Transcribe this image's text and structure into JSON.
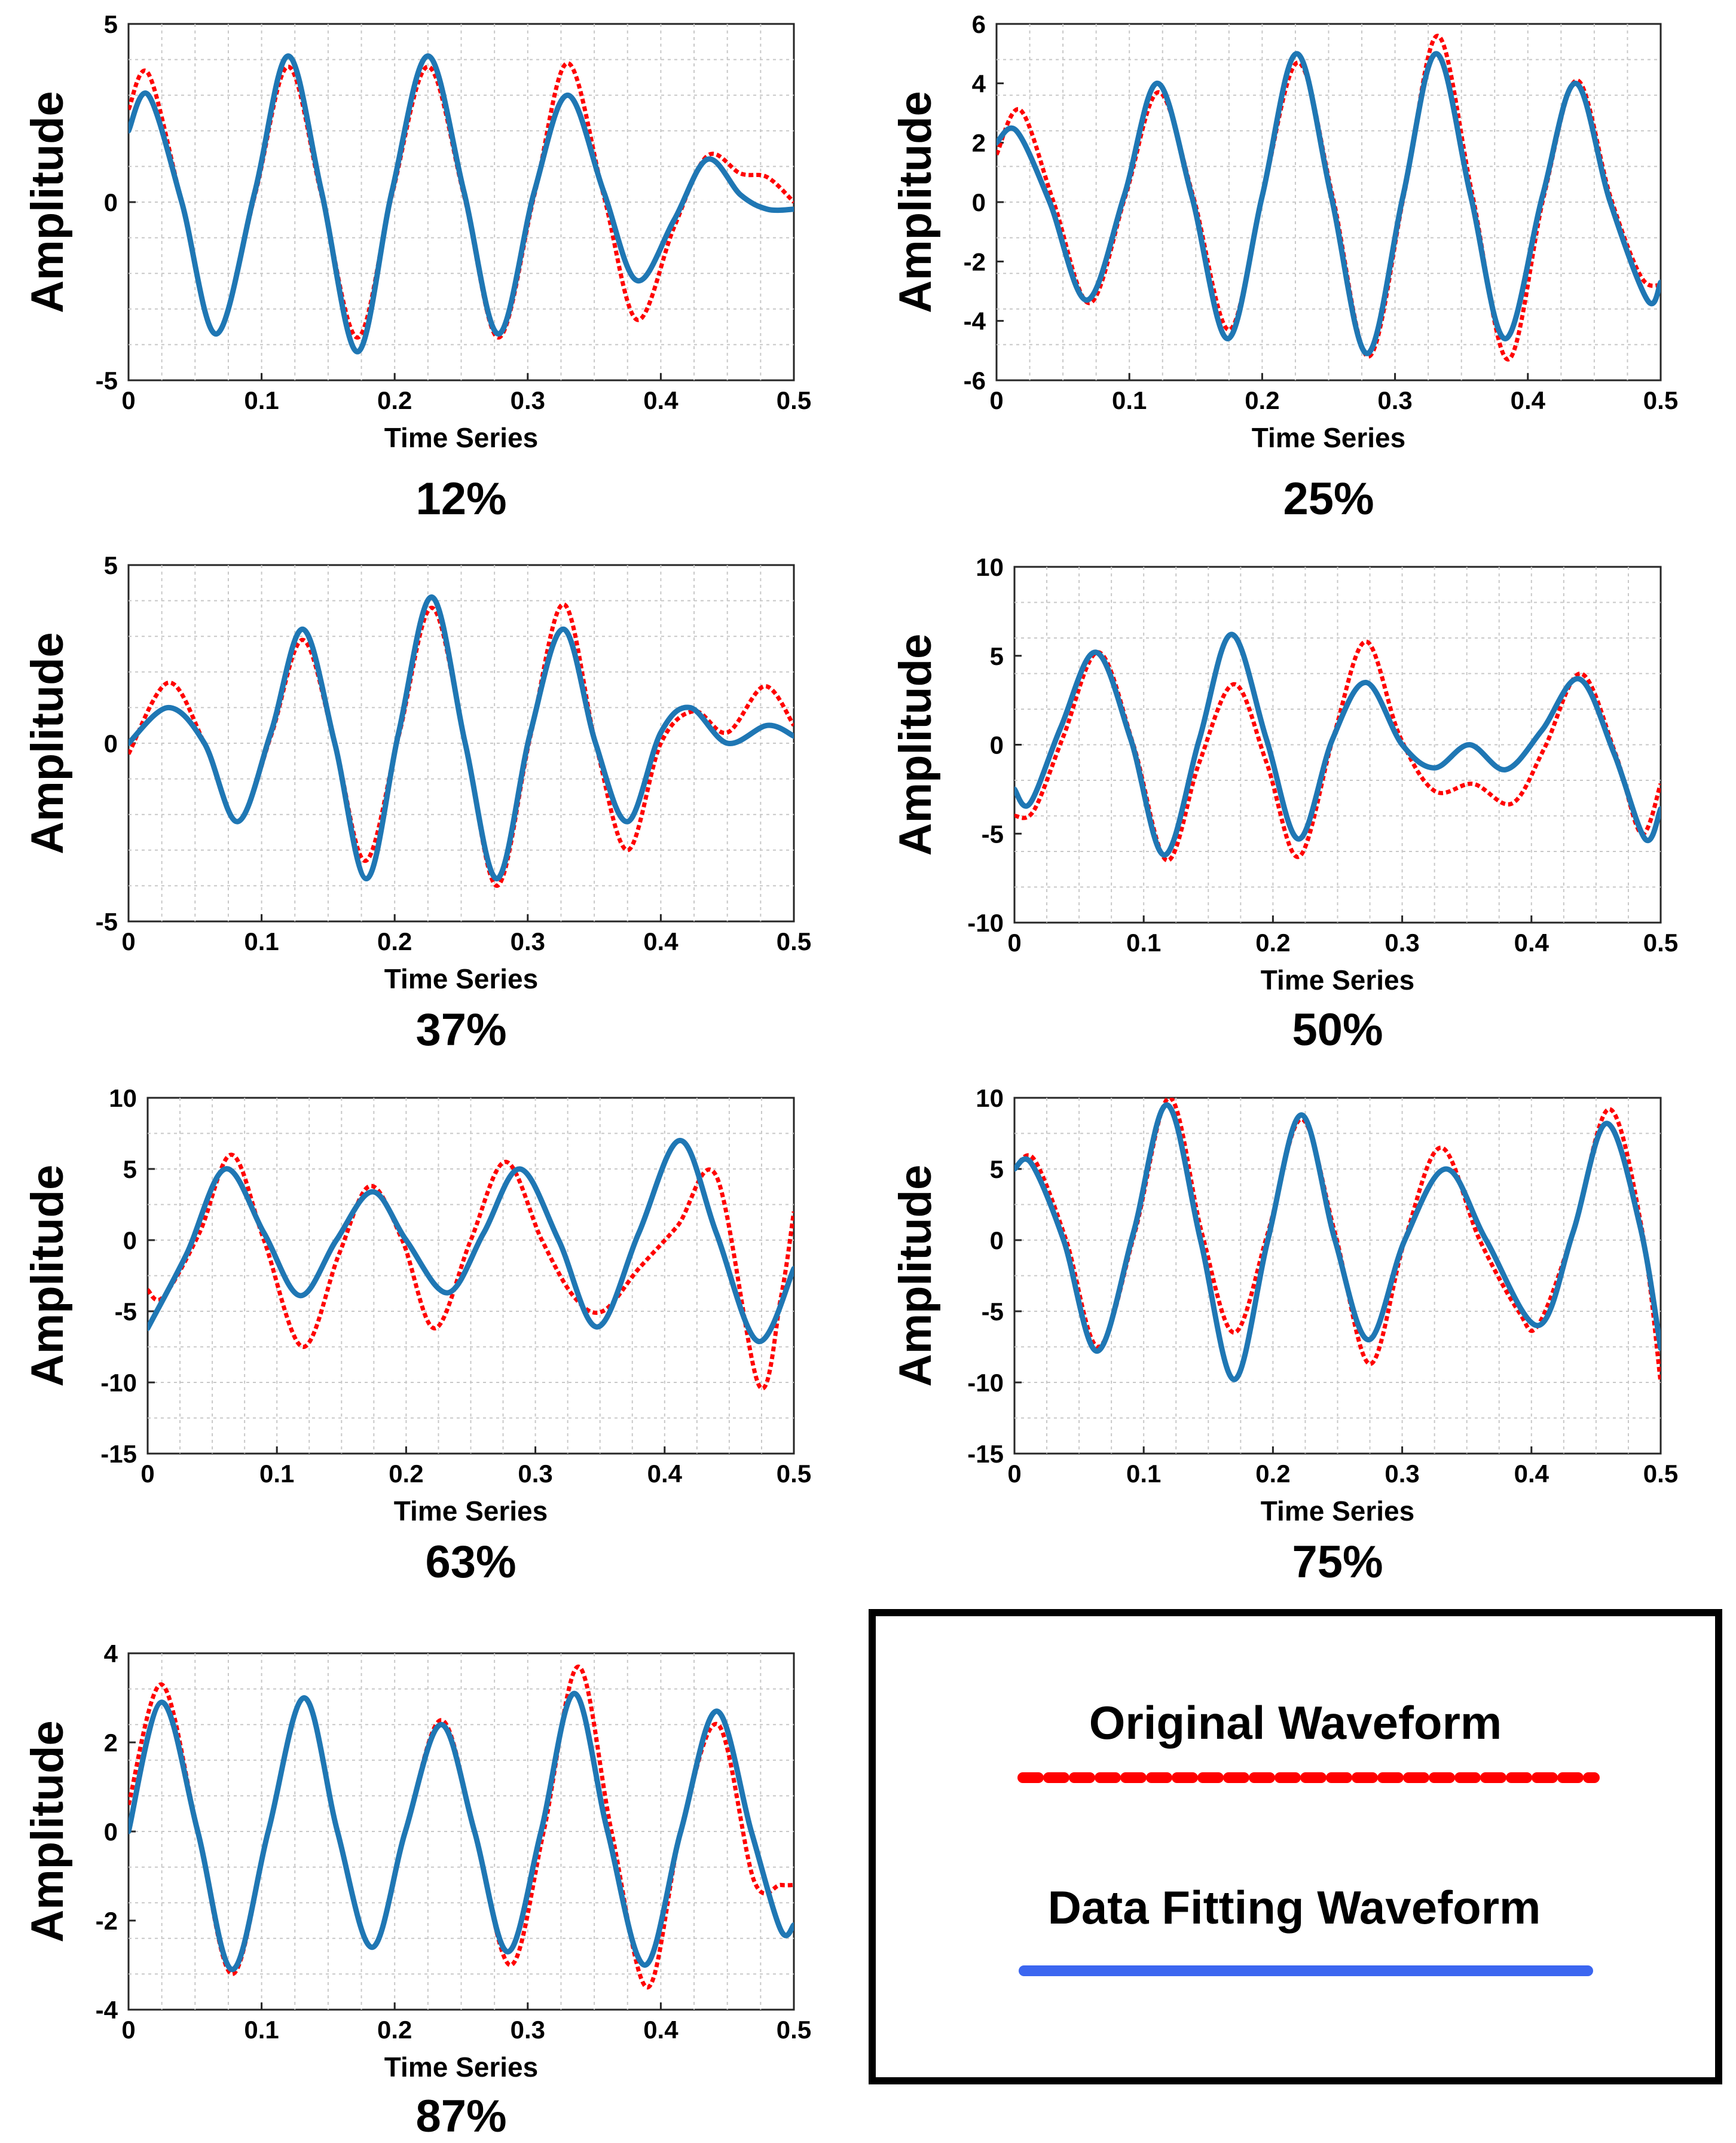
{
  "colors": {
    "original": "#ff0000",
    "fit": "#1f77b4",
    "legend_fit": "#3b66f0"
  },
  "legend": {
    "original_label": "Original Waveform",
    "fit_label": "Data Fitting Waveform"
  },
  "chart_data": [
    {
      "type": "line",
      "caption": "12%",
      "xlabel": "Time Series",
      "ylabel": "Amplitude",
      "xlim": [
        0,
        0.5
      ],
      "ylim": [
        -5,
        5
      ],
      "xticks": [
        0,
        0.1,
        0.2,
        0.3,
        0.4,
        0.5
      ],
      "yticks": [
        -5,
        0,
        5
      ],
      "grid": true,
      "series": [
        {
          "name": "Original Waveform",
          "x": [
            0,
            0.015,
            0.04,
            0.066,
            0.095,
            0.12,
            0.145,
            0.172,
            0.198,
            0.225,
            0.252,
            0.278,
            0.305,
            0.33,
            0.357,
            0.382,
            0.41,
            0.435,
            0.46,
            0.48,
            0.5
          ],
          "y": [
            2.6,
            3.6,
            0.0,
            -3.7,
            0.2,
            3.8,
            0.2,
            -3.8,
            0.2,
            3.8,
            0.2,
            -3.8,
            0.2,
            3.9,
            0.2,
            -3.3,
            -0.7,
            1.3,
            0.8,
            0.7,
            0.0
          ]
        },
        {
          "name": "Data Fitting Waveform",
          "x": [
            0,
            0.015,
            0.04,
            0.066,
            0.095,
            0.12,
            0.145,
            0.172,
            0.198,
            0.225,
            0.252,
            0.278,
            0.305,
            0.33,
            0.357,
            0.382,
            0.41,
            0.435,
            0.46,
            0.48,
            0.5
          ],
          "y": [
            2.0,
            3.0,
            0.0,
            -3.7,
            0.3,
            4.1,
            0.3,
            -4.2,
            0.3,
            4.1,
            0.3,
            -3.7,
            0.3,
            3.0,
            0.3,
            -2.2,
            -0.5,
            1.2,
            0.2,
            -0.2,
            -0.2
          ]
        }
      ]
    },
    {
      "type": "line",
      "caption": "25%",
      "xlabel": "Time Series",
      "ylabel": "Amplitude",
      "xlim": [
        0,
        0.5
      ],
      "ylim": [
        -6,
        6
      ],
      "xticks": [
        0,
        0.1,
        0.2,
        0.3,
        0.4,
        0.5
      ],
      "yticks": [
        -6,
        -4,
        -2,
        0,
        2,
        4,
        6
      ],
      "grid": true,
      "series": [
        {
          "name": "Original Waveform",
          "x": [
            0,
            0.018,
            0.043,
            0.07,
            0.097,
            0.122,
            0.148,
            0.175,
            0.2,
            0.227,
            0.253,
            0.28,
            0.307,
            0.332,
            0.358,
            0.385,
            0.412,
            0.437,
            0.462,
            0.485,
            0.5
          ],
          "y": [
            1.6,
            3.1,
            0.0,
            -3.4,
            0.2,
            3.7,
            0.2,
            -4.3,
            0.2,
            4.7,
            0.2,
            -5.2,
            0.3,
            5.6,
            0.3,
            -5.3,
            0.2,
            4.1,
            0.2,
            -2.5,
            -2.8
          ]
        },
        {
          "name": "Data Fitting Waveform",
          "x": [
            0,
            0.015,
            0.04,
            0.068,
            0.096,
            0.121,
            0.147,
            0.174,
            0.2,
            0.226,
            0.252,
            0.279,
            0.306,
            0.331,
            0.357,
            0.383,
            0.411,
            0.436,
            0.462,
            0.49,
            0.5
          ],
          "y": [
            2.0,
            2.4,
            0.0,
            -3.3,
            0.2,
            4.0,
            0.2,
            -4.6,
            0.2,
            5.0,
            0.2,
            -5.1,
            0.2,
            5.0,
            0.2,
            -4.6,
            0.2,
            4.0,
            0.0,
            -3.3,
            -2.7
          ]
        }
      ]
    },
    {
      "type": "line",
      "caption": "37%",
      "xlabel": "Time Series",
      "ylabel": "Amplitude",
      "xlim": [
        0,
        0.5
      ],
      "ylim": [
        -5,
        5
      ],
      "xticks": [
        0,
        0.1,
        0.2,
        0.3,
        0.4,
        0.5
      ],
      "yticks": [
        -5,
        0,
        5
      ],
      "grid": true,
      "series": [
        {
          "name": "Original Waveform",
          "x": [
            0,
            0.03,
            0.057,
            0.082,
            0.107,
            0.131,
            0.155,
            0.178,
            0.203,
            0.228,
            0.253,
            0.277,
            0.302,
            0.327,
            0.351,
            0.375,
            0.4,
            0.425,
            0.45,
            0.478,
            0.5
          ],
          "y": [
            -0.3,
            1.7,
            0.0,
            -2.2,
            0.2,
            2.9,
            0.0,
            -3.3,
            0.2,
            3.8,
            0.0,
            -4.0,
            0.2,
            3.9,
            0.0,
            -3.0,
            0.0,
            0.9,
            0.3,
            1.6,
            0.5
          ]
        },
        {
          "name": "Data Fitting Waveform",
          "x": [
            0,
            0.03,
            0.057,
            0.082,
            0.107,
            0.131,
            0.155,
            0.179,
            0.203,
            0.228,
            0.253,
            0.277,
            0.302,
            0.327,
            0.351,
            0.375,
            0.4,
            0.422,
            0.45,
            0.48,
            0.5
          ],
          "y": [
            0.0,
            1.0,
            0.0,
            -2.2,
            0.3,
            3.2,
            0.0,
            -3.8,
            0.3,
            4.1,
            0.0,
            -3.8,
            0.3,
            3.2,
            0.0,
            -2.2,
            0.3,
            1.0,
            0.0,
            0.5,
            0.2
          ]
        }
      ]
    },
    {
      "type": "line",
      "caption": "50%",
      "xlabel": "Time Series",
      "ylabel": "Amplitude",
      "xlim": [
        0,
        0.5
      ],
      "ylim": [
        -10,
        10
      ],
      "xticks": [
        0,
        0.1,
        0.2,
        0.3,
        0.4,
        0.5
      ],
      "yticks": [
        -10,
        -5,
        0,
        5,
        10
      ],
      "grid": true,
      "series": [
        {
          "name": "Original Waveform",
          "x": [
            0,
            0.015,
            0.038,
            0.065,
            0.092,
            0.118,
            0.143,
            0.17,
            0.195,
            0.22,
            0.247,
            0.272,
            0.298,
            0.325,
            0.355,
            0.385,
            0.41,
            0.438,
            0.465,
            0.485,
            0.5
          ],
          "y": [
            -4.0,
            -3.7,
            0.5,
            5.2,
            0.0,
            -6.5,
            -1.0,
            3.4,
            -1.0,
            -6.3,
            0.5,
            5.8,
            0.5,
            -2.6,
            -2.2,
            -3.3,
            -0.2,
            4.0,
            -0.5,
            -5.0,
            -2.2
          ]
        },
        {
          "name": "Data Fitting Waveform",
          "x": [
            0,
            0.012,
            0.036,
            0.063,
            0.09,
            0.116,
            0.143,
            0.168,
            0.195,
            0.22,
            0.246,
            0.272,
            0.3,
            0.325,
            0.352,
            0.38,
            0.408,
            0.437,
            0.464,
            0.488,
            0.5
          ],
          "y": [
            -2.5,
            -3.3,
            1.0,
            5.2,
            0.3,
            -6.2,
            0.3,
            6.2,
            0.3,
            -5.3,
            0.3,
            3.5,
            0.0,
            -1.3,
            0.0,
            -1.4,
            0.8,
            3.7,
            -0.5,
            -5.3,
            -3.6
          ]
        }
      ]
    },
    {
      "type": "line",
      "caption": "63%",
      "xlabel": "Time Series",
      "ylabel": "Amplitude",
      "xlim": [
        0,
        0.5
      ],
      "ylim": [
        -15,
        10
      ],
      "xticks": [
        0,
        0.1,
        0.2,
        0.3,
        0.4,
        0.5
      ],
      "yticks": [
        -15,
        -10,
        -5,
        0,
        5,
        10
      ],
      "grid": true,
      "series": [
        {
          "name": "Original Waveform",
          "x": [
            0,
            0.012,
            0.04,
            0.065,
            0.09,
            0.12,
            0.148,
            0.172,
            0.197,
            0.222,
            0.25,
            0.277,
            0.305,
            0.33,
            0.352,
            0.38,
            0.41,
            0.44,
            0.473,
            0.49,
            0.5
          ],
          "y": [
            -3.5,
            -4.0,
            0.5,
            6.0,
            0.0,
            -7.5,
            -1.0,
            3.8,
            0.0,
            -6.2,
            0.0,
            5.5,
            0.0,
            -4.0,
            -5.0,
            -2.0,
            1.0,
            4.5,
            -10.2,
            -4.0,
            2.0
          ]
        },
        {
          "name": "Data Fitting Waveform",
          "x": [
            0,
            0.03,
            0.06,
            0.09,
            0.118,
            0.146,
            0.174,
            0.2,
            0.232,
            0.26,
            0.288,
            0.318,
            0.348,
            0.38,
            0.412,
            0.44,
            0.472,
            0.5
          ],
          "y": [
            -6.2,
            -1.0,
            5.0,
            0.5,
            -3.9,
            0.0,
            3.4,
            0.0,
            -3.7,
            0.5,
            5.0,
            0.0,
            -6.1,
            0.5,
            7.0,
            0.5,
            -7.1,
            -2.0
          ]
        }
      ]
    },
    {
      "type": "line",
      "caption": "75%",
      "xlabel": "Time Series",
      "ylabel": "Amplitude",
      "xlim": [
        0,
        0.5
      ],
      "ylim": [
        -15,
        10
      ],
      "xticks": [
        0,
        0.1,
        0.2,
        0.3,
        0.4,
        0.5
      ],
      "yticks": [
        -15,
        -10,
        -5,
        0,
        5,
        10
      ],
      "grid": true,
      "series": [
        {
          "name": "Original Waveform",
          "x": [
            0,
            0.015,
            0.04,
            0.065,
            0.093,
            0.12,
            0.145,
            0.17,
            0.196,
            0.222,
            0.248,
            0.275,
            0.302,
            0.33,
            0.36,
            0.39,
            0.405,
            0.432,
            0.46,
            0.485,
            0.5
          ],
          "y": [
            5.0,
            5.7,
            0.0,
            -7.5,
            0.5,
            10.0,
            0.5,
            -6.5,
            0.5,
            8.5,
            0.5,
            -8.7,
            0.0,
            6.5,
            0.0,
            -5.0,
            -6.0,
            0.5,
            9.2,
            1.0,
            -10.0
          ]
        },
        {
          "name": "Data Fitting Waveform",
          "x": [
            0,
            0.013,
            0.038,
            0.064,
            0.092,
            0.118,
            0.144,
            0.17,
            0.196,
            0.222,
            0.248,
            0.274,
            0.302,
            0.334,
            0.365,
            0.405,
            0.432,
            0.458,
            0.484,
            0.5
          ],
          "y": [
            5.0,
            5.4,
            0.0,
            -7.8,
            0.5,
            9.5,
            0.0,
            -9.8,
            0.0,
            8.8,
            0.0,
            -7.0,
            0.0,
            5.0,
            0.0,
            -6.0,
            0.5,
            8.2,
            1.0,
            -7.6
          ]
        }
      ]
    },
    {
      "type": "line",
      "caption": "87%",
      "xlabel": "Time Series",
      "ylabel": "Amplitude",
      "xlim": [
        0,
        0.5
      ],
      "ylim": [
        -4,
        4
      ],
      "xticks": [
        0,
        0.1,
        0.2,
        0.3,
        0.4,
        0.5
      ],
      "yticks": [
        -4,
        -2,
        0,
        2,
        4
      ],
      "grid": true,
      "series": [
        {
          "name": "Original Waveform",
          "x": [
            0,
            0.025,
            0.052,
            0.078,
            0.105,
            0.132,
            0.157,
            0.183,
            0.208,
            0.235,
            0.26,
            0.287,
            0.312,
            0.338,
            0.363,
            0.39,
            0.415,
            0.443,
            0.47,
            0.49,
            0.5
          ],
          "y": [
            0.6,
            3.3,
            0.0,
            -3.2,
            0.0,
            3.0,
            0.0,
            -2.6,
            0.0,
            2.5,
            0.0,
            -3.0,
            0.0,
            3.7,
            0.0,
            -3.5,
            0.0,
            2.4,
            -1.1,
            -1.2,
            -1.2
          ]
        },
        {
          "name": "Data Fitting Waveform",
          "x": [
            0,
            0.025,
            0.052,
            0.078,
            0.105,
            0.132,
            0.157,
            0.183,
            0.208,
            0.235,
            0.26,
            0.285,
            0.31,
            0.335,
            0.36,
            0.388,
            0.415,
            0.442,
            0.468,
            0.49,
            0.5
          ],
          "y": [
            0.0,
            2.9,
            0.0,
            -3.1,
            0.0,
            3.0,
            0.0,
            -2.6,
            0.0,
            2.4,
            0.0,
            -2.7,
            0.0,
            3.1,
            0.0,
            -3.0,
            0.0,
            2.7,
            0.0,
            -2.2,
            -2.1
          ]
        }
      ]
    }
  ]
}
